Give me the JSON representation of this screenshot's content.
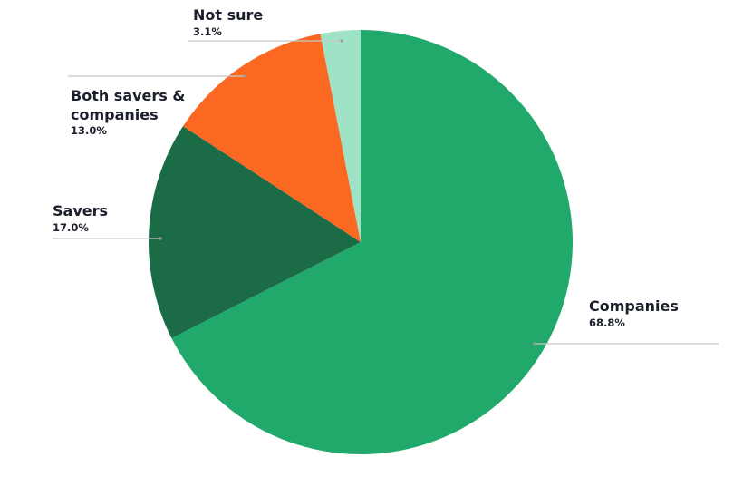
{
  "chart_data": {
    "type": "pie",
    "start_angle_deg": 0,
    "direction": "clockwise",
    "legend": "none",
    "slices": [
      {
        "label": "Companies",
        "label_lines": [
          "Companies"
        ],
        "value": 68.8,
        "display": "68.8%",
        "color": "#21a96c"
      },
      {
        "label": "Savers",
        "label_lines": [
          "Savers"
        ],
        "value": 17.0,
        "display": "17.0%",
        "color": "#1b6b47"
      },
      {
        "label": "Both savers & companies",
        "label_lines": [
          "Both savers &",
          "companies"
        ],
        "value": 13.0,
        "display": "13.0%",
        "color": "#fa6822"
      },
      {
        "label": "Not sure",
        "label_lines": [
          "Not sure"
        ],
        "value": 3.1,
        "display": "3.1%",
        "color": "#9fe3c7"
      }
    ]
  }
}
